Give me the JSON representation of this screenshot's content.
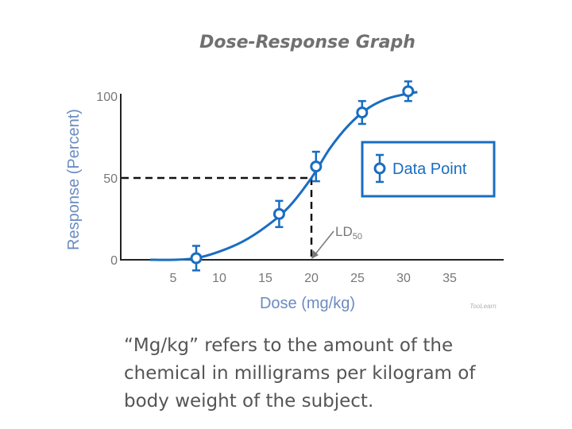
{
  "chart_data": {
    "type": "scatter",
    "title": "Dose-Response Graph",
    "xlabel": "Dose (mg/kg)",
    "ylabel": "Response (Percent)",
    "x_ticks": [
      5,
      10,
      15,
      20,
      25,
      30,
      35
    ],
    "y_ticks": [
      0,
      50,
      100
    ],
    "xlim": [
      0,
      40
    ],
    "ylim": [
      0,
      100
    ],
    "points": [
      {
        "x": 7.5,
        "y": 1,
        "err": 7.5
      },
      {
        "x": 16.5,
        "y": 28,
        "err": 8
      },
      {
        "x": 20.5,
        "y": 57,
        "err": 9
      },
      {
        "x": 25.5,
        "y": 90,
        "err": 7
      },
      {
        "x": 30.5,
        "y": 103,
        "err": 6
      }
    ],
    "curve": [
      [
        2.5,
        0
      ],
      [
        5,
        0
      ],
      [
        7.5,
        1
      ],
      [
        10,
        5
      ],
      [
        12.5,
        11
      ],
      [
        15,
        20
      ],
      [
        17.5,
        32
      ],
      [
        20,
        50
      ],
      [
        22,
        68
      ],
      [
        24,
        82
      ],
      [
        26,
        92
      ],
      [
        28,
        98
      ],
      [
        30,
        101
      ],
      [
        31.5,
        102.5
      ]
    ],
    "ld50": {
      "x": 20,
      "y": 50
    },
    "legend": {
      "label": "Data Point",
      "position": "right"
    },
    "annotation": {
      "label": "LD",
      "subscript": "50"
    },
    "grid": false,
    "colors": {
      "series": "#1a6dc0",
      "text": "#777777",
      "axis_label": "#6a8bc3"
    }
  },
  "watermark": "TooLearn",
  "caption_lines": [
    "“Mg/kg” refers to the amount of the",
    "chemical in milligrams per kilogram of",
    "body weight of the subject."
  ]
}
